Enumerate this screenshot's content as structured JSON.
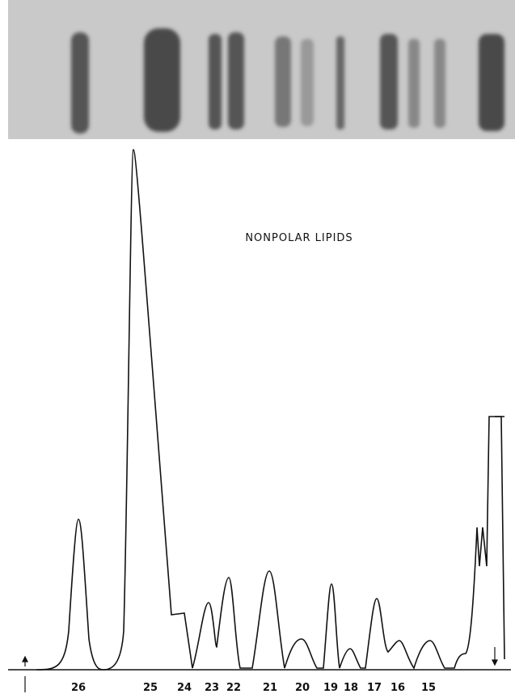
{
  "figure": {
    "title": "NONPOLAR LIPIDS",
    "peaks": [
      "26",
      "25",
      "24",
      "23",
      "22",
      "21",
      "20",
      "19",
      "18",
      "17",
      "16",
      "15"
    ]
  }
}
